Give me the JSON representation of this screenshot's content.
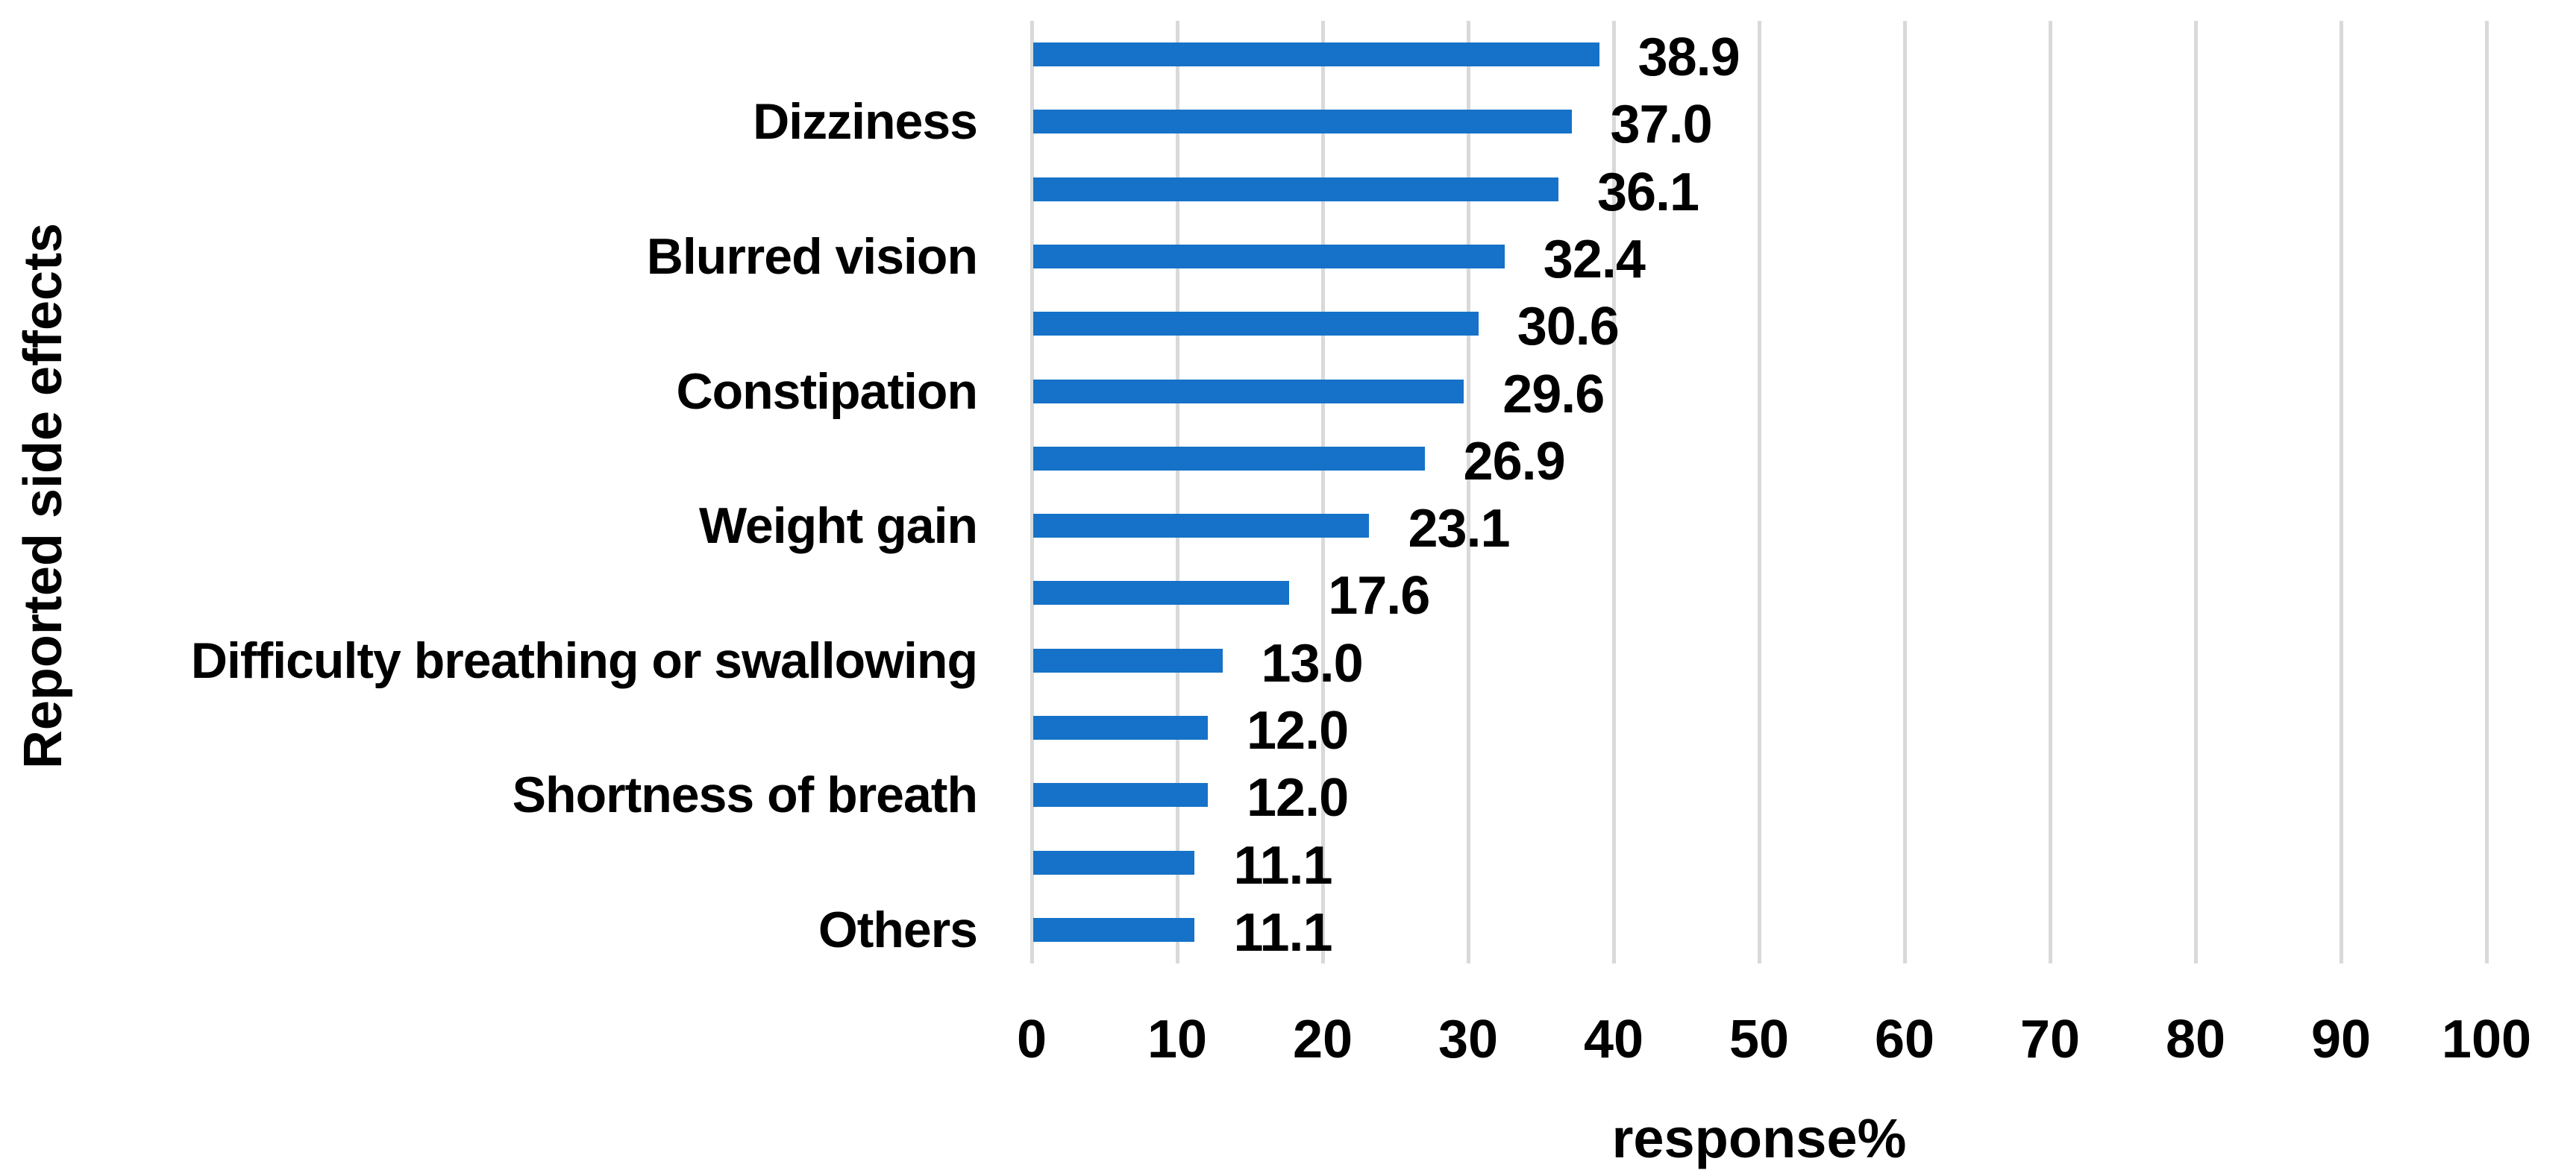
{
  "chart_data": {
    "type": "bar",
    "orientation": "horizontal",
    "ylabel": "Reported side effects",
    "xlabel": "response%",
    "xlim": [
      0,
      100
    ],
    "x_ticks": [
      0,
      10,
      20,
      30,
      40,
      50,
      60,
      70,
      80,
      90,
      100
    ],
    "grid": "vertical gridlines on",
    "legend_position": "none",
    "colors": {
      "bar": "#1572C8",
      "gridline": "#D9D9D9",
      "text": "#000000",
      "background": "#FFFFFF"
    },
    "categories": [
      "",
      "Dizziness",
      "",
      "Blurred vision",
      "",
      "Constipation",
      "",
      "Weight gain",
      "",
      "Difficulty breathing or swallowing",
      "",
      "Shortness of breath",
      "",
      "Others"
    ],
    "values": [
      38.9,
      37.0,
      36.1,
      32.4,
      30.6,
      29.6,
      26.9,
      23.1,
      17.6,
      13.0,
      12.0,
      12.0,
      11.1,
      11.1
    ],
    "value_labels": [
      "38.9",
      "37.0",
      "36.1",
      "32.4",
      "30.6",
      "29.6",
      "26.9",
      "23.1",
      "17.6",
      "13.0",
      "12.0",
      "12.0",
      "11.1",
      "11.1"
    ]
  }
}
